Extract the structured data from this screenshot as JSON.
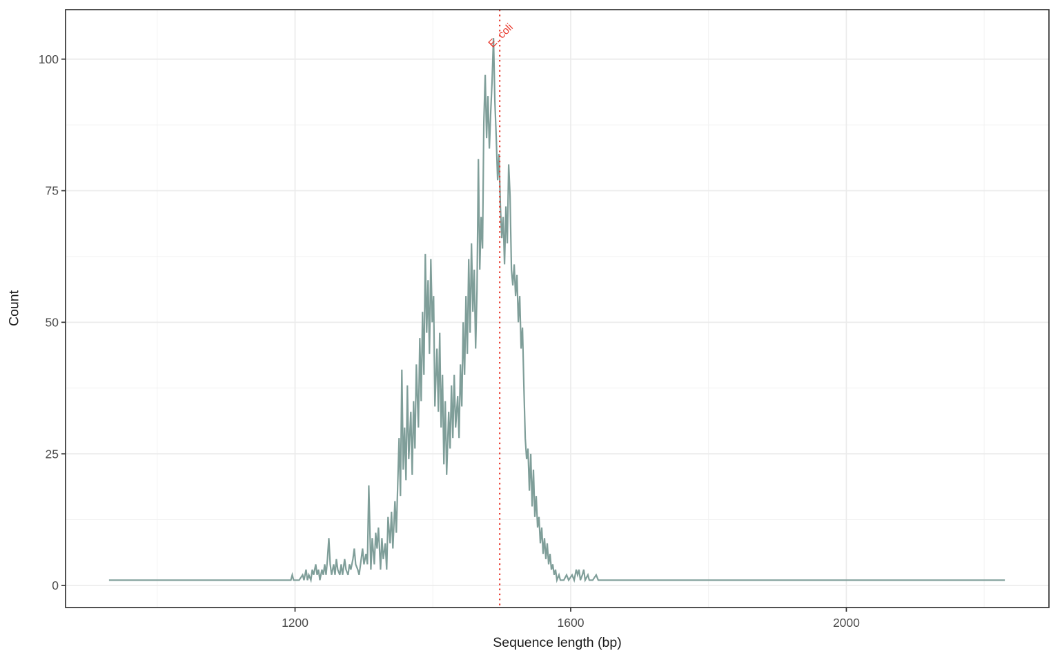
{
  "page": {
    "background": "#ffffff"
  },
  "chart_data": {
    "type": "line",
    "subtype": "frequency-polygon",
    "title": "",
    "xlabel": "Sequence length (bp)",
    "ylabel": "Count",
    "xlim": [
      867,
      2294
    ],
    "ylim": [
      -4.2,
      109.4
    ],
    "x_ticks": [
      1200,
      1600,
      2000
    ],
    "x_minor_gridlines": [
      1000,
      1400,
      1800,
      2200
    ],
    "y_ticks": [
      0,
      25,
      50,
      75,
      100
    ],
    "y_minor_gridlines": [
      12.5,
      37.5,
      62.5,
      87.5
    ],
    "grid": true,
    "legend": "none",
    "colors": {
      "line": "#7f9e99",
      "grid_major": "#ebebeb",
      "grid_minor": "#f2f2f2",
      "panel_border": "#333333",
      "tick_mark": "#333333",
      "tick_label": "#4d4d4d",
      "axis_title": "#1a1a1a"
    },
    "annotation": {
      "label": "E. coli",
      "x": 1497,
      "color": "#e8362a",
      "style": "dotted-vline"
    },
    "series": [
      {
        "name": "sequence-length-counts",
        "points": [
          [
            930,
            1
          ],
          [
            980,
            1
          ],
          [
            1040,
            1
          ],
          [
            1100,
            1
          ],
          [
            1160,
            1
          ],
          [
            1190,
            1
          ],
          [
            1194,
            1
          ],
          [
            1196,
            2
          ],
          [
            1198,
            1
          ],
          [
            1206,
            1
          ],
          [
            1211,
            2
          ],
          [
            1213,
            1
          ],
          [
            1216,
            3
          ],
          [
            1218,
            1
          ],
          [
            1220,
            2
          ],
          [
            1223,
            1
          ],
          [
            1225,
            3
          ],
          [
            1227,
            2
          ],
          [
            1230,
            4
          ],
          [
            1232,
            2
          ],
          [
            1234,
            3
          ],
          [
            1236,
            1
          ],
          [
            1239,
            3
          ],
          [
            1241,
            2
          ],
          [
            1243,
            4
          ],
          [
            1245,
            2
          ],
          [
            1247,
            5
          ],
          [
            1249,
            9
          ],
          [
            1251,
            4
          ],
          [
            1253,
            2
          ],
          [
            1256,
            4
          ],
          [
            1258,
            2
          ],
          [
            1260,
            5
          ],
          [
            1262,
            3
          ],
          [
            1265,
            2
          ],
          [
            1267,
            4
          ],
          [
            1269,
            2
          ],
          [
            1272,
            5
          ],
          [
            1274,
            3
          ],
          [
            1277,
            2
          ],
          [
            1279,
            4
          ],
          [
            1281,
            3
          ],
          [
            1284,
            5
          ],
          [
            1286,
            7
          ],
          [
            1288,
            4
          ],
          [
            1291,
            3
          ],
          [
            1293,
            2
          ],
          [
            1296,
            5
          ],
          [
            1298,
            7
          ],
          [
            1300,
            4
          ],
          [
            1303,
            6
          ],
          [
            1305,
            4
          ],
          [
            1307,
            19
          ],
          [
            1310,
            3
          ],
          [
            1312,
            9
          ],
          [
            1315,
            4
          ],
          [
            1317,
            10
          ],
          [
            1319,
            7
          ],
          [
            1321,
            11
          ],
          [
            1324,
            3
          ],
          [
            1326,
            9
          ],
          [
            1328,
            5
          ],
          [
            1331,
            8
          ],
          [
            1333,
            3
          ],
          [
            1335,
            13
          ],
          [
            1338,
            8
          ],
          [
            1340,
            14
          ],
          [
            1342,
            7
          ],
          [
            1345,
            16
          ],
          [
            1347,
            10
          ],
          [
            1349,
            19
          ],
          [
            1351,
            28
          ],
          [
            1353,
            17
          ],
          [
            1355,
            41
          ],
          [
            1357,
            22
          ],
          [
            1359,
            30
          ],
          [
            1361,
            20
          ],
          [
            1363,
            38
          ],
          [
            1365,
            24
          ],
          [
            1368,
            33
          ],
          [
            1370,
            21
          ],
          [
            1372,
            35
          ],
          [
            1374,
            26
          ],
          [
            1376,
            42
          ],
          [
            1379,
            30
          ],
          [
            1381,
            47
          ],
          [
            1383,
            35
          ],
          [
            1385,
            52
          ],
          [
            1387,
            40
          ],
          [
            1389,
            63
          ],
          [
            1391,
            48
          ],
          [
            1393,
            58
          ],
          [
            1395,
            44
          ],
          [
            1397,
            62
          ],
          [
            1399,
            50
          ],
          [
            1401,
            55
          ],
          [
            1403,
            34
          ],
          [
            1406,
            45
          ],
          [
            1408,
            33
          ],
          [
            1410,
            48
          ],
          [
            1412,
            30
          ],
          [
            1414,
            40
          ],
          [
            1416,
            23
          ],
          [
            1418,
            35
          ],
          [
            1420,
            21
          ],
          [
            1423,
            33
          ],
          [
            1425,
            26
          ],
          [
            1427,
            38
          ],
          [
            1429,
            28
          ],
          [
            1431,
            40
          ],
          [
            1433,
            30
          ],
          [
            1436,
            36
          ],
          [
            1438,
            28
          ],
          [
            1440,
            42
          ],
          [
            1442,
            34
          ],
          [
            1444,
            50
          ],
          [
            1446,
            40
          ],
          [
            1448,
            55
          ],
          [
            1450,
            44
          ],
          [
            1452,
            62
          ],
          [
            1454,
            48
          ],
          [
            1456,
            65
          ],
          [
            1458,
            52
          ],
          [
            1460,
            60
          ],
          [
            1462,
            45
          ],
          [
            1464,
            56
          ],
          [
            1466,
            81
          ],
          [
            1468,
            60
          ],
          [
            1470,
            70
          ],
          [
            1472,
            64
          ],
          [
            1474,
            88
          ],
          [
            1476,
            97
          ],
          [
            1478,
            85
          ],
          [
            1480,
            93
          ],
          [
            1482,
            83
          ],
          [
            1484,
            90
          ],
          [
            1486,
            96
          ],
          [
            1488,
            104
          ],
          [
            1490,
            92
          ],
          [
            1492,
            85
          ],
          [
            1494,
            77
          ],
          [
            1496,
            82
          ],
          [
            1498,
            72
          ],
          [
            1500,
            66
          ],
          [
            1502,
            70
          ],
          [
            1504,
            61
          ],
          [
            1506,
            72
          ],
          [
            1508,
            65
          ],
          [
            1510,
            80
          ],
          [
            1512,
            74
          ],
          [
            1514,
            60
          ],
          [
            1516,
            57
          ],
          [
            1518,
            61
          ],
          [
            1520,
            55
          ],
          [
            1522,
            59
          ],
          [
            1524,
            50
          ],
          [
            1526,
            55
          ],
          [
            1528,
            45
          ],
          [
            1530,
            49
          ],
          [
            1532,
            38
          ],
          [
            1534,
            28
          ],
          [
            1536,
            24
          ],
          [
            1538,
            26
          ],
          [
            1540,
            18
          ],
          [
            1542,
            25
          ],
          [
            1544,
            15
          ],
          [
            1546,
            22
          ],
          [
            1548,
            13
          ],
          [
            1550,
            17
          ],
          [
            1552,
            11
          ],
          [
            1554,
            13
          ],
          [
            1556,
            8
          ],
          [
            1558,
            11
          ],
          [
            1560,
            6
          ],
          [
            1562,
            9
          ],
          [
            1564,
            5
          ],
          [
            1566,
            8
          ],
          [
            1568,
            4
          ],
          [
            1570,
            6
          ],
          [
            1572,
            3
          ],
          [
            1574,
            4
          ],
          [
            1576,
            2
          ],
          [
            1578,
            3
          ],
          [
            1580,
            1
          ],
          [
            1583,
            2
          ],
          [
            1585,
            1
          ],
          [
            1590,
            1
          ],
          [
            1594,
            2
          ],
          [
            1597,
            1
          ],
          [
            1602,
            2
          ],
          [
            1605,
            1
          ],
          [
            1608,
            3
          ],
          [
            1610,
            2
          ],
          [
            1612,
            3
          ],
          [
            1614,
            1
          ],
          [
            1617,
            2
          ],
          [
            1619,
            3
          ],
          [
            1621,
            1
          ],
          [
            1625,
            2
          ],
          [
            1627,
            1
          ],
          [
            1632,
            1
          ],
          [
            1637,
            2
          ],
          [
            1640,
            1
          ],
          [
            1648,
            1
          ],
          [
            1700,
            1
          ],
          [
            1760,
            1
          ],
          [
            1820,
            1
          ],
          [
            1880,
            1
          ],
          [
            1940,
            1
          ],
          [
            2000,
            1
          ],
          [
            2060,
            1
          ],
          [
            2120,
            1
          ],
          [
            2180,
            1
          ],
          [
            2230,
            1
          ]
        ]
      }
    ]
  }
}
